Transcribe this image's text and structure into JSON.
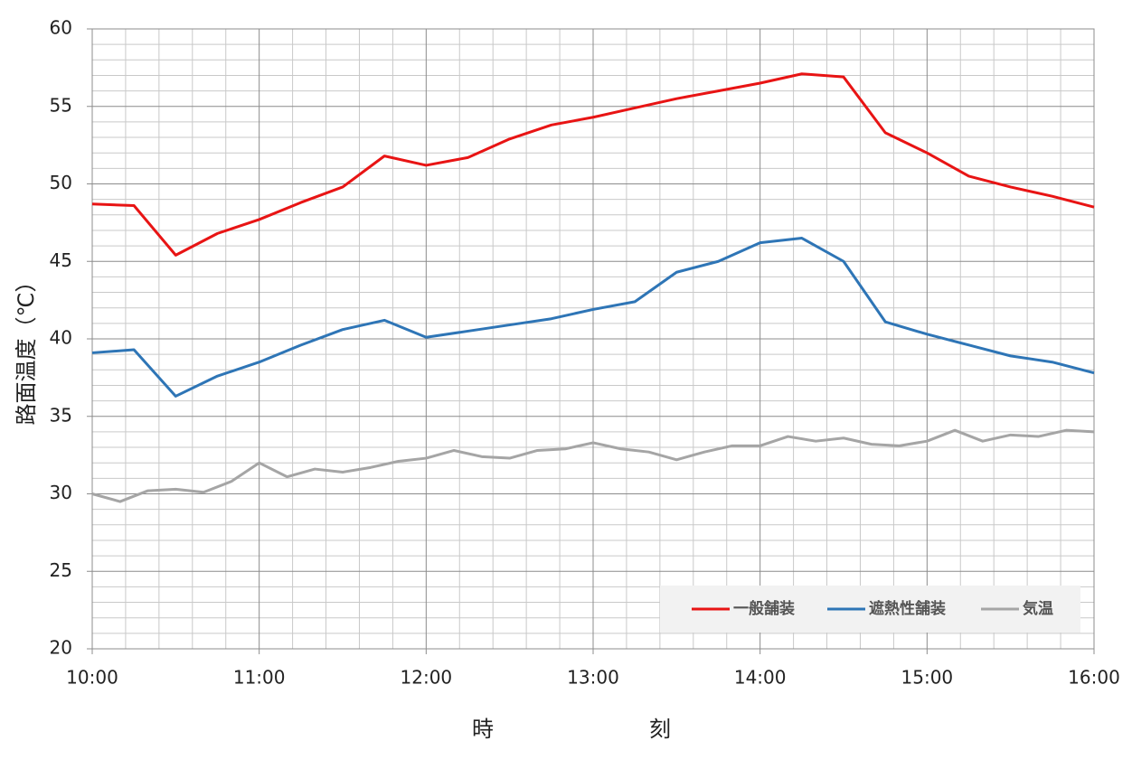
{
  "chart_data": {
    "type": "line",
    "x_label": "時刻",
    "y_label": "路面温度（℃）",
    "xlim": [
      10,
      16
    ],
    "xticks": [
      {
        "value": 10,
        "label": "10:00"
      },
      {
        "value": 11,
        "label": "11:00"
      },
      {
        "value": 12,
        "label": "12:00"
      },
      {
        "value": 13,
        "label": "13:00"
      },
      {
        "value": 14,
        "label": "14:00"
      },
      {
        "value": 15,
        "label": "15:00"
      },
      {
        "value": 16,
        "label": "16:00"
      }
    ],
    "ylim": [
      20,
      60
    ],
    "yticks": [
      20,
      25,
      30,
      35,
      40,
      45,
      50,
      55,
      60
    ],
    "grid": true,
    "legend": "bottom-right",
    "series": [
      {
        "name": "一般舗装",
        "color": "#e81414",
        "x": [
          10,
          10.25,
          10.5,
          10.75,
          11,
          11.25,
          11.5,
          11.75,
          12,
          12.25,
          12.5,
          12.75,
          13,
          13.25,
          13.5,
          13.75,
          14,
          14.25,
          14.5,
          14.75,
          15,
          15.25,
          15.5,
          15.75,
          16
        ],
        "values": [
          48.7,
          48.6,
          45.4,
          46.8,
          47.7,
          48.8,
          49.8,
          51.8,
          51.2,
          51.7,
          52.9,
          53.8,
          54.3,
          54.9,
          55.5,
          56.0,
          56.5,
          57.1,
          56.9,
          53.3,
          52.0,
          50.5,
          49.8,
          49.2,
          48.5
        ]
      },
      {
        "name": "遮熱性舗装",
        "color": "#2e75b6",
        "x": [
          10,
          10.25,
          10.5,
          10.75,
          11,
          11.25,
          11.5,
          11.75,
          12,
          12.25,
          12.5,
          12.75,
          13,
          13.25,
          13.5,
          13.75,
          14,
          14.25,
          14.5,
          14.75,
          15,
          15.25,
          15.5,
          15.75,
          16
        ],
        "values": [
          39.1,
          39.3,
          36.3,
          37.6,
          38.5,
          39.6,
          40.6,
          41.2,
          40.1,
          40.5,
          40.9,
          41.3,
          41.9,
          42.4,
          44.3,
          45.0,
          46.2,
          46.5,
          45.0,
          41.1,
          40.3,
          39.6,
          38.9,
          38.5,
          37.8
        ]
      },
      {
        "name": "気温",
        "color": "#a5a5a5",
        "x": [
          10,
          10.1667,
          10.3333,
          10.5,
          10.6667,
          10.8333,
          11,
          11.1667,
          11.3333,
          11.5,
          11.6667,
          11.8333,
          12,
          12.1667,
          12.3333,
          12.5,
          12.6667,
          12.8333,
          13,
          13.1667,
          13.3333,
          13.5,
          13.6667,
          13.8333,
          14,
          14.1667,
          14.3333,
          14.5,
          14.6667,
          14.8333,
          15,
          15.1667,
          15.3333,
          15.5,
          15.6667,
          15.8333,
          16
        ],
        "values": [
          30.0,
          29.5,
          30.2,
          30.3,
          30.1,
          30.8,
          32.0,
          31.1,
          31.6,
          31.4,
          31.7,
          32.1,
          32.3,
          32.8,
          32.4,
          32.3,
          32.8,
          32.9,
          33.3,
          32.9,
          32.7,
          32.2,
          32.7,
          33.1,
          33.1,
          33.7,
          33.4,
          33.6,
          33.2,
          33.1,
          33.4,
          34.1,
          33.4,
          33.8,
          33.7,
          34.1,
          34.0
        ]
      }
    ]
  }
}
